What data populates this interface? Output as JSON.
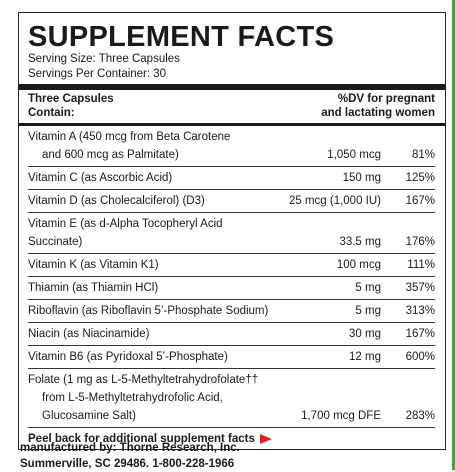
{
  "header": {
    "title": "SUPPLEMENT FACTS",
    "serving_size": "Serving Size: Three Capsules",
    "servings_per_container": "Servings Per Container: 30"
  },
  "table": {
    "columns": [
      [
        "Three Capsules",
        "Contain:"
      ],
      [
        "%DV for pregnant",
        "and lactating women"
      ]
    ],
    "rows": [
      {
        "name": [
          "Vitamin A (450 mcg from Beta Carotene",
          "and 600 mcg as Palmitate)"
        ],
        "amount": "1,050 mcg",
        "dv": "81%"
      },
      {
        "name": [
          "Vitamin C (as Ascorbic Acid)"
        ],
        "amount": "150 mg",
        "dv": "125%"
      },
      {
        "name": [
          "Vitamin D (as Cholecalciferol) (D3)"
        ],
        "amount": "25 mcg (1,000 IU)",
        "dv": "167%"
      },
      {
        "name": [
          "Vitamin E (as d-Alpha Tocopheryl Acid Succinate)"
        ],
        "amount": "33.5 mg",
        "dv": "176%"
      },
      {
        "name": [
          "Vitamin K (as Vitamin K1)"
        ],
        "amount": "100 mcg",
        "dv": "111%"
      },
      {
        "name": [
          "Thiamin (as Thiamin HCl)"
        ],
        "amount": "5 mg",
        "dv": "357%"
      },
      {
        "name": [
          "Riboflavin (as Riboflavin 5’-Phosphate Sodium)"
        ],
        "amount": "5 mg",
        "dv": "313%"
      },
      {
        "name": [
          "Niacin (as Niacinamide)"
        ],
        "amount": "30 mg",
        "dv": "167%"
      },
      {
        "name": [
          "Vitamin B6 (as Pyridoxal 5’-Phosphate)"
        ],
        "amount": "12 mg",
        "dv": "600%"
      },
      {
        "name": [
          "Folate (1 mg as L-5-Methyltetrahydrofolate††",
          "from L-5-Methyltetrahydrofolic Acid,",
          "Glucosamine Salt)"
        ],
        "amount": "1,700 mcg DFE",
        "dv": "283%"
      }
    ]
  },
  "footer_note": "Peel back for additional supplement facts",
  "manufacturer": [
    "manufactured by: Thorne Research, Inc.",
    "Summerville, SC 29486. 1-800-228-1966"
  ]
}
